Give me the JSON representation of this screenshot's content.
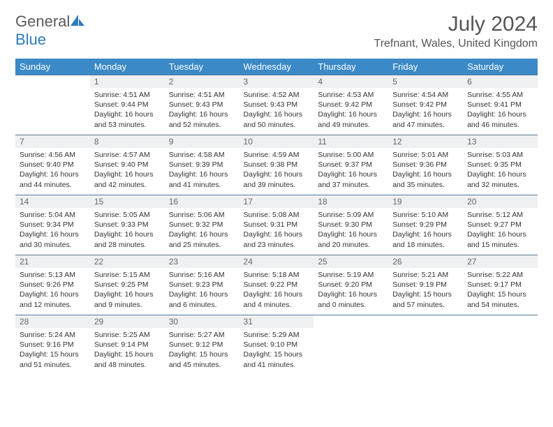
{
  "brand": {
    "part1": "General",
    "part2": "Blue"
  },
  "title": "July 2024",
  "location": "Trefnant, Wales, United Kingdom",
  "colors": {
    "header_bg": "#3b89c7",
    "header_text": "#ffffff",
    "daynum_bg": "#eef0f2",
    "cell_border": "#5b7a99",
    "brand_blue": "#2f7bbf"
  },
  "weekdays": [
    "Sunday",
    "Monday",
    "Tuesday",
    "Wednesday",
    "Thursday",
    "Friday",
    "Saturday"
  ],
  "start_offset": 1,
  "days": [
    {
      "n": "1",
      "sunrise": "4:51 AM",
      "sunset": "9:44 PM",
      "daylight": "16 hours and 53 minutes."
    },
    {
      "n": "2",
      "sunrise": "4:51 AM",
      "sunset": "9:43 PM",
      "daylight": "16 hours and 52 minutes."
    },
    {
      "n": "3",
      "sunrise": "4:52 AM",
      "sunset": "9:43 PM",
      "daylight": "16 hours and 50 minutes."
    },
    {
      "n": "4",
      "sunrise": "4:53 AM",
      "sunset": "9:42 PM",
      "daylight": "16 hours and 49 minutes."
    },
    {
      "n": "5",
      "sunrise": "4:54 AM",
      "sunset": "9:42 PM",
      "daylight": "16 hours and 47 minutes."
    },
    {
      "n": "6",
      "sunrise": "4:55 AM",
      "sunset": "9:41 PM",
      "daylight": "16 hours and 46 minutes."
    },
    {
      "n": "7",
      "sunrise": "4:56 AM",
      "sunset": "9:40 PM",
      "daylight": "16 hours and 44 minutes."
    },
    {
      "n": "8",
      "sunrise": "4:57 AM",
      "sunset": "9:40 PM",
      "daylight": "16 hours and 42 minutes."
    },
    {
      "n": "9",
      "sunrise": "4:58 AM",
      "sunset": "9:39 PM",
      "daylight": "16 hours and 41 minutes."
    },
    {
      "n": "10",
      "sunrise": "4:59 AM",
      "sunset": "9:38 PM",
      "daylight": "16 hours and 39 minutes."
    },
    {
      "n": "11",
      "sunrise": "5:00 AM",
      "sunset": "9:37 PM",
      "daylight": "16 hours and 37 minutes."
    },
    {
      "n": "12",
      "sunrise": "5:01 AM",
      "sunset": "9:36 PM",
      "daylight": "16 hours and 35 minutes."
    },
    {
      "n": "13",
      "sunrise": "5:03 AM",
      "sunset": "9:35 PM",
      "daylight": "16 hours and 32 minutes."
    },
    {
      "n": "14",
      "sunrise": "5:04 AM",
      "sunset": "9:34 PM",
      "daylight": "16 hours and 30 minutes."
    },
    {
      "n": "15",
      "sunrise": "5:05 AM",
      "sunset": "9:33 PM",
      "daylight": "16 hours and 28 minutes."
    },
    {
      "n": "16",
      "sunrise": "5:06 AM",
      "sunset": "9:32 PM",
      "daylight": "16 hours and 25 minutes."
    },
    {
      "n": "17",
      "sunrise": "5:08 AM",
      "sunset": "9:31 PM",
      "daylight": "16 hours and 23 minutes."
    },
    {
      "n": "18",
      "sunrise": "5:09 AM",
      "sunset": "9:30 PM",
      "daylight": "16 hours and 20 minutes."
    },
    {
      "n": "19",
      "sunrise": "5:10 AM",
      "sunset": "9:29 PM",
      "daylight": "16 hours and 18 minutes."
    },
    {
      "n": "20",
      "sunrise": "5:12 AM",
      "sunset": "9:27 PM",
      "daylight": "16 hours and 15 minutes."
    },
    {
      "n": "21",
      "sunrise": "5:13 AM",
      "sunset": "9:26 PM",
      "daylight": "16 hours and 12 minutes."
    },
    {
      "n": "22",
      "sunrise": "5:15 AM",
      "sunset": "9:25 PM",
      "daylight": "16 hours and 9 minutes."
    },
    {
      "n": "23",
      "sunrise": "5:16 AM",
      "sunset": "9:23 PM",
      "daylight": "16 hours and 6 minutes."
    },
    {
      "n": "24",
      "sunrise": "5:18 AM",
      "sunset": "9:22 PM",
      "daylight": "16 hours and 4 minutes."
    },
    {
      "n": "25",
      "sunrise": "5:19 AM",
      "sunset": "9:20 PM",
      "daylight": "16 hours and 0 minutes."
    },
    {
      "n": "26",
      "sunrise": "5:21 AM",
      "sunset": "9:19 PM",
      "daylight": "15 hours and 57 minutes."
    },
    {
      "n": "27",
      "sunrise": "5:22 AM",
      "sunset": "9:17 PM",
      "daylight": "15 hours and 54 minutes."
    },
    {
      "n": "28",
      "sunrise": "5:24 AM",
      "sunset": "9:16 PM",
      "daylight": "15 hours and 51 minutes."
    },
    {
      "n": "29",
      "sunrise": "5:25 AM",
      "sunset": "9:14 PM",
      "daylight": "15 hours and 48 minutes."
    },
    {
      "n": "30",
      "sunrise": "5:27 AM",
      "sunset": "9:12 PM",
      "daylight": "15 hours and 45 minutes."
    },
    {
      "n": "31",
      "sunrise": "5:29 AM",
      "sunset": "9:10 PM",
      "daylight": "15 hours and 41 minutes."
    }
  ],
  "labels": {
    "sunrise": "Sunrise:",
    "sunset": "Sunset:",
    "daylight": "Daylight:"
  }
}
